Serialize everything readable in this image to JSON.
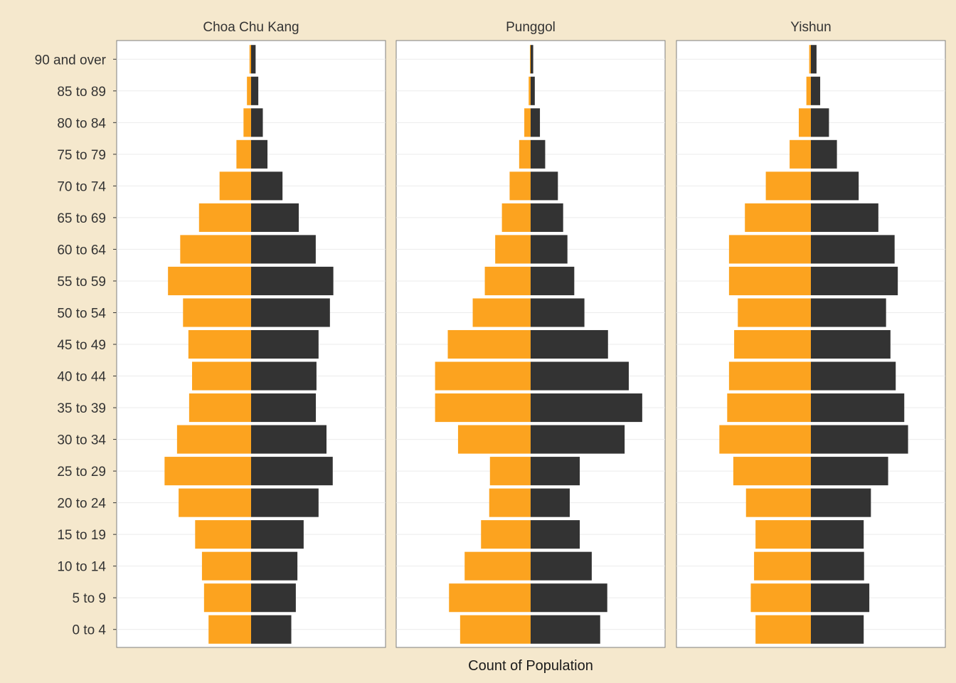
{
  "chart_data": {
    "type": "bar",
    "subtype": "population-pyramid",
    "xlabel": "Count of Population",
    "ylabel": "",
    "x_axis_ticks_shown": false,
    "grid": true,
    "categories": [
      "0 to 4",
      "5 to 9",
      "10 to 14",
      "15 to 19",
      "20 to 24",
      "25 to 29",
      "30 to 34",
      "35 to 39",
      "40 to 44",
      "45 to 49",
      "50 to 54",
      "55 to 59",
      "60 to 64",
      "65 to 69",
      "70 to 74",
      "75 to 79",
      "80 to 84",
      "85 to 89",
      "90 and over"
    ],
    "xlim": [
      -11000,
      11000
    ],
    "colors": {
      "left": "#fca31f",
      "right": "#333333"
    },
    "panels": [
      {
        "title": "Choa Chu Kang",
        "series": [
          {
            "name": "left",
            "values": [
              3480,
              3850,
              4020,
              4580,
              5930,
              7080,
              6060,
              5070,
              4830,
              5130,
              5570,
              6800,
              5800,
              4260,
              2580,
              1200,
              620,
              340,
              130
            ]
          },
          {
            "name": "right",
            "values": [
              3290,
              3660,
              3790,
              4300,
              5520,
              6680,
              6170,
              5300,
              5350,
              5520,
              6450,
              6730,
              5290,
              3900,
              2570,
              1340,
              960,
              590,
              370
            ]
          }
        ]
      },
      {
        "title": "Punggol",
        "series": [
          {
            "name": "left",
            "values": [
              5770,
              6680,
              5400,
              4060,
              3390,
              3330,
              5940,
              7820,
              7820,
              6780,
              4740,
              3750,
              2900,
              2350,
              1720,
              940,
              520,
              160,
              60
            ]
          },
          {
            "name": "right",
            "values": [
              5690,
              6270,
              5000,
              4020,
              3200,
              4020,
              7690,
              9130,
              8030,
              6330,
              4400,
              3570,
              3010,
              2660,
              2230,
              1190,
              760,
              340,
              210
            ]
          }
        ]
      },
      {
        "title": "Yishun",
        "series": [
          {
            "name": "left",
            "values": [
              4530,
              4920,
              4650,
              4530,
              5310,
              6350,
              7490,
              6850,
              6700,
              6280,
              5980,
              6700,
              6700,
              5400,
              3690,
              1740,
              990,
              370,
              140
            ]
          },
          {
            "name": "right",
            "values": [
              4320,
              4780,
              4350,
              4320,
              4910,
              6320,
              7950,
              7640,
              6940,
              6510,
              6150,
              7110,
              6850,
              5520,
              3910,
              2130,
              1480,
              760,
              460
            ]
          }
        ]
      }
    ]
  }
}
